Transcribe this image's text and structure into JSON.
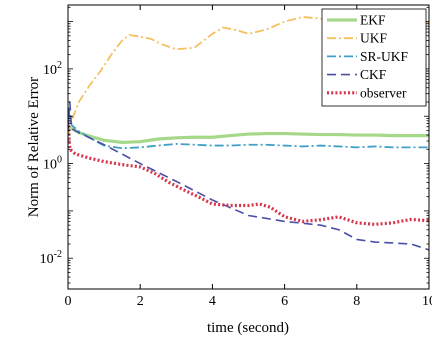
{
  "chart_data": {
    "type": "line",
    "title": "",
    "xlabel": "time (second)",
    "ylabel": "Norm of Relative Error",
    "xlim": [
      0,
      10
    ],
    "ylim_log10": [
      -2.65,
      3.35
    ],
    "y_scale": "log",
    "x_ticks": [
      0,
      2,
      4,
      6,
      8,
      10
    ],
    "y_ticks": [
      {
        "exp": -2,
        "base": "10",
        "sup": "-2"
      },
      {
        "exp": 0,
        "base": "10",
        "sup": "0"
      },
      {
        "exp": 2,
        "base": "10",
        "sup": "2"
      }
    ],
    "grid": false,
    "legend_position": "top-right",
    "series": [
      {
        "name": "EKF",
        "color": "#a6d88a",
        "style": "solid",
        "points": [
          [
            0,
            5.5
          ],
          [
            0.1,
            5.5
          ],
          [
            0.3,
            4.5
          ],
          [
            0.6,
            3.8
          ],
          [
            1.0,
            3.1
          ],
          [
            1.5,
            2.8
          ],
          [
            2.0,
            2.9
          ],
          [
            2.5,
            3.3
          ],
          [
            3.0,
            3.5
          ],
          [
            3.5,
            3.6
          ],
          [
            4.0,
            3.6
          ],
          [
            4.5,
            3.9
          ],
          [
            5.0,
            4.2
          ],
          [
            5.5,
            4.3
          ],
          [
            6.0,
            4.3
          ],
          [
            6.5,
            4.2
          ],
          [
            7.0,
            4.1
          ],
          [
            7.5,
            4.1
          ],
          [
            8.0,
            4.0
          ],
          [
            8.5,
            4.0
          ],
          [
            9.0,
            3.9
          ],
          [
            9.5,
            3.9
          ],
          [
            10.0,
            3.9
          ]
        ]
      },
      {
        "name": "UKF",
        "color": "#f5c060",
        "style": "dashdot",
        "points": [
          [
            0,
            4.0
          ],
          [
            0.1,
            8.0
          ],
          [
            0.3,
            20
          ],
          [
            0.6,
            45
          ],
          [
            0.9,
            90
          ],
          [
            1.2,
            200
          ],
          [
            1.5,
            400
          ],
          [
            1.7,
            520
          ],
          [
            2.0,
            480
          ],
          [
            2.3,
            430
          ],
          [
            2.6,
            330
          ],
          [
            3.0,
            260
          ],
          [
            3.5,
            280
          ],
          [
            4.0,
            550
          ],
          [
            4.3,
            750
          ],
          [
            4.7,
            650
          ],
          [
            5.0,
            550
          ],
          [
            5.5,
            680
          ],
          [
            6.0,
            1000
          ],
          [
            6.5,
            1250
          ],
          [
            7.0,
            1150
          ],
          [
            7.5,
            900
          ],
          [
            8.0,
            800
          ],
          [
            8.5,
            1000
          ],
          [
            9.0,
            1200
          ],
          [
            9.5,
            1050
          ],
          [
            10.0,
            950
          ]
        ]
      },
      {
        "name": "SR-UKF",
        "color": "#3f9fc6",
        "style": "dashdot",
        "points": [
          [
            0,
            7.0
          ],
          [
            0.05,
            11
          ],
          [
            0.1,
            6.5
          ],
          [
            0.3,
            4.8
          ],
          [
            0.6,
            3.5
          ],
          [
            1.0,
            2.4
          ],
          [
            1.5,
            2.1
          ],
          [
            2.0,
            2.2
          ],
          [
            2.5,
            2.4
          ],
          [
            3.0,
            2.6
          ],
          [
            3.5,
            2.5
          ],
          [
            4.0,
            2.4
          ],
          [
            4.5,
            2.4
          ],
          [
            5.0,
            2.5
          ],
          [
            5.5,
            2.5
          ],
          [
            6.0,
            2.4
          ],
          [
            6.5,
            2.3
          ],
          [
            7.0,
            2.4
          ],
          [
            7.5,
            2.3
          ],
          [
            8.0,
            2.2
          ],
          [
            8.5,
            2.3
          ],
          [
            9.0,
            2.2
          ],
          [
            9.5,
            2.2
          ],
          [
            10.0,
            2.2
          ]
        ]
      },
      {
        "name": "CKF",
        "color": "#4a4fa8",
        "style": "dashed",
        "points": [
          [
            0,
            5.0
          ],
          [
            0.05,
            20
          ],
          [
            0.1,
            5.5
          ],
          [
            0.3,
            4.5
          ],
          [
            1.0,
            2.5
          ],
          [
            2.0,
            1.0
          ],
          [
            3.0,
            0.42
          ],
          [
            4.0,
            0.17
          ],
          [
            5.0,
            0.08
          ],
          [
            6.0,
            0.06
          ],
          [
            7.0,
            0.05
          ],
          [
            7.5,
            0.04
          ],
          [
            8.0,
            0.025
          ],
          [
            8.5,
            0.022
          ],
          [
            9.0,
            0.021
          ],
          [
            9.5,
            0.02
          ],
          [
            10.0,
            0.015
          ]
        ]
      },
      {
        "name": "observer",
        "color": "#d7364a",
        "style": "dotted",
        "points": [
          [
            0,
            8.0
          ],
          [
            0.05,
            2.0
          ],
          [
            0.2,
            1.6
          ],
          [
            0.6,
            1.3
          ],
          [
            1.0,
            1.1
          ],
          [
            1.5,
            0.95
          ],
          [
            2.0,
            0.85
          ],
          [
            2.4,
            0.62
          ],
          [
            2.8,
            0.4
          ],
          [
            3.2,
            0.28
          ],
          [
            3.6,
            0.2
          ],
          [
            4.0,
            0.14
          ],
          [
            4.5,
            0.13
          ],
          [
            5.0,
            0.13
          ],
          [
            5.3,
            0.14
          ],
          [
            5.6,
            0.12
          ],
          [
            6.0,
            0.075
          ],
          [
            6.5,
            0.06
          ],
          [
            7.0,
            0.065
          ],
          [
            7.5,
            0.075
          ],
          [
            8.0,
            0.056
          ],
          [
            8.5,
            0.052
          ],
          [
            9.0,
            0.056
          ],
          [
            9.5,
            0.066
          ],
          [
            10.0,
            0.062
          ]
        ]
      }
    ]
  }
}
